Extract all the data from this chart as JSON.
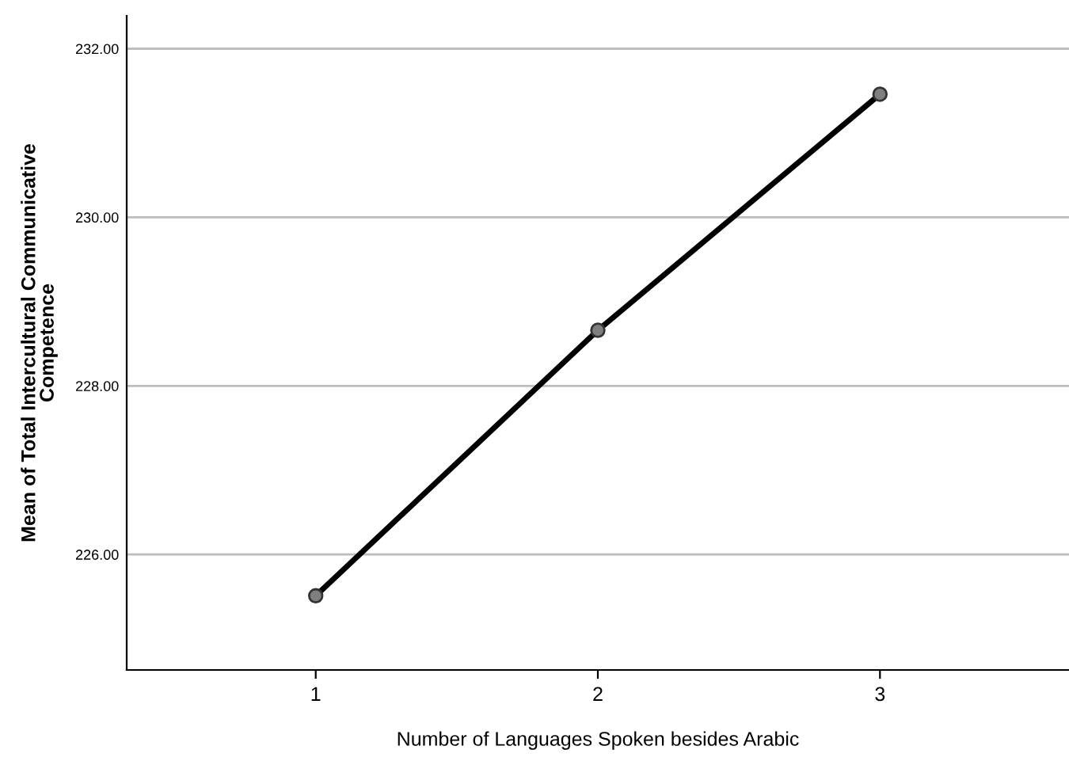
{
  "chart_data": {
    "type": "line",
    "xlabel": "Number of Languages Spoken besides Arabic",
    "ylabel": "Mean of Total Intercultural Communicative\nCompetence",
    "categories": [
      "1",
      "2",
      "3"
    ],
    "series": [
      {
        "color": "#000000",
        "values": [
          225.51,
          228.66,
          231.46
        ]
      }
    ],
    "ylim": [
      224.63,
      232.39
    ],
    "yticks": [
      {
        "value": 226,
        "label": "226.00"
      },
      {
        "value": 228,
        "label": "228.00"
      },
      {
        "value": 230,
        "label": "230.00"
      },
      {
        "value": 232,
        "label": "232.00"
      }
    ],
    "grid": "y",
    "marker": "circle",
    "line_style": "solid",
    "legend": false
  }
}
